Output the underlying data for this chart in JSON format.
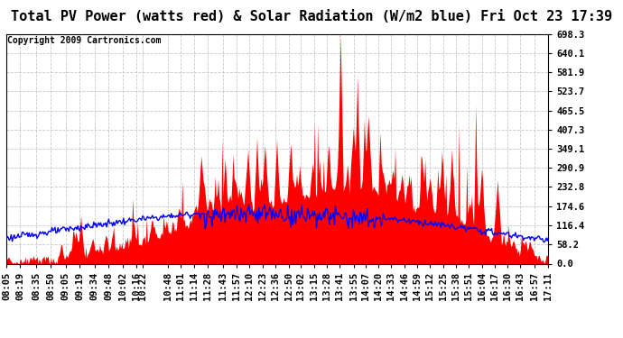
{
  "title": "Total PV Power (watts red) & Solar Radiation (W/m2 blue) Fri Oct 23 17:39",
  "copyright_text": "Copyright 2009 Cartronics.com",
  "ylabel_right_ticks": [
    0.0,
    58.2,
    116.4,
    174.6,
    232.8,
    290.9,
    349.1,
    407.3,
    465.5,
    523.7,
    581.9,
    640.1,
    698.3
  ],
  "ylim": [
    0.0,
    698.3
  ],
  "xlabels": [
    "08:05",
    "08:19",
    "08:35",
    "08:50",
    "09:05",
    "09:19",
    "09:34",
    "09:48",
    "10:02",
    "10:16",
    "10:22",
    "10:48",
    "11:01",
    "11:14",
    "11:28",
    "11:43",
    "11:57",
    "12:10",
    "12:23",
    "12:36",
    "12:50",
    "13:02",
    "13:15",
    "13:28",
    "13:41",
    "13:55",
    "14:07",
    "14:20",
    "14:33",
    "14:46",
    "14:59",
    "15:12",
    "15:25",
    "15:38",
    "15:51",
    "16:04",
    "16:17",
    "16:30",
    "16:43",
    "16:57",
    "17:11"
  ],
  "background_color": "#ffffff",
  "red_color": "#ff0000",
  "blue_color": "#0000ff",
  "grid_color": "#c8c8c8",
  "title_fontsize": 11,
  "tick_fontsize": 7.5,
  "copyright_fontsize": 7
}
